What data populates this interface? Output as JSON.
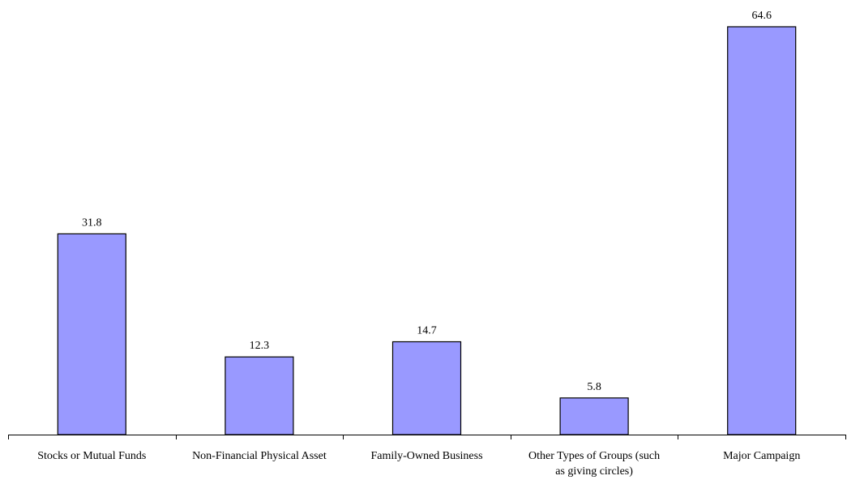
{
  "chart_data": {
    "type": "bar",
    "categories": [
      [
        "Stocks or Mutual Funds"
      ],
      [
        "Non-Financial Physical Asset"
      ],
      [
        "Family-Owned Business"
      ],
      [
        "Other Types of Groups (such",
        "as giving circles)"
      ],
      [
        "Major Campaign"
      ]
    ],
    "values": [
      31.8,
      12.3,
      14.7,
      5.8,
      64.6
    ],
    "value_labels": [
      "31.8",
      "12.3",
      "14.7",
      "5.8",
      "64.6"
    ],
    "title": "",
    "xlabel": "",
    "ylabel": "",
    "ylim": [
      0,
      66
    ],
    "grid": false,
    "legend": "none",
    "bar_color": "#9999ff",
    "bar_edge_color": "#000000"
  }
}
